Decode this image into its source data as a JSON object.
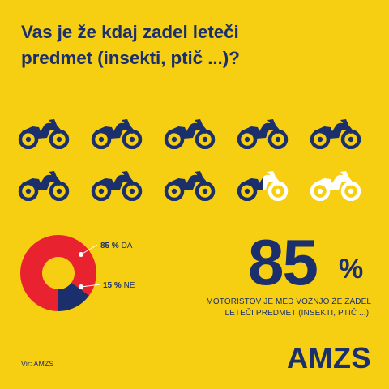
{
  "title_lines": [
    "Vas je že kdaj zadel leteči",
    "predmet (insekti, ptič ...)?"
  ],
  "chart_data": [
    {
      "type": "pictogram",
      "total_icons": 10,
      "filled_value": 8.5,
      "unit_value": 10,
      "icon": "motorcycle-icon"
    },
    {
      "type": "pie",
      "labels": [
        "DA",
        "NE"
      ],
      "values": [
        85,
        15
      ],
      "display_labels": [
        "85 % DA",
        "15 % NE"
      ]
    }
  ],
  "colors": {
    "background": "#F7CF12",
    "navy": "#1A2F6B",
    "red": "#E8232F",
    "white": "#FFFFFF"
  },
  "headline": {
    "number": "85",
    "suffix": "%"
  },
  "caption_lines": [
    "MOTORISTOV JE MED VOŽNJO ŽE ZADEL",
    "LETEČI PREDMET (INSEKTI, PTIČ ...)."
  ],
  "source": "Vir: AMZS",
  "logo_text": "AMZS"
}
